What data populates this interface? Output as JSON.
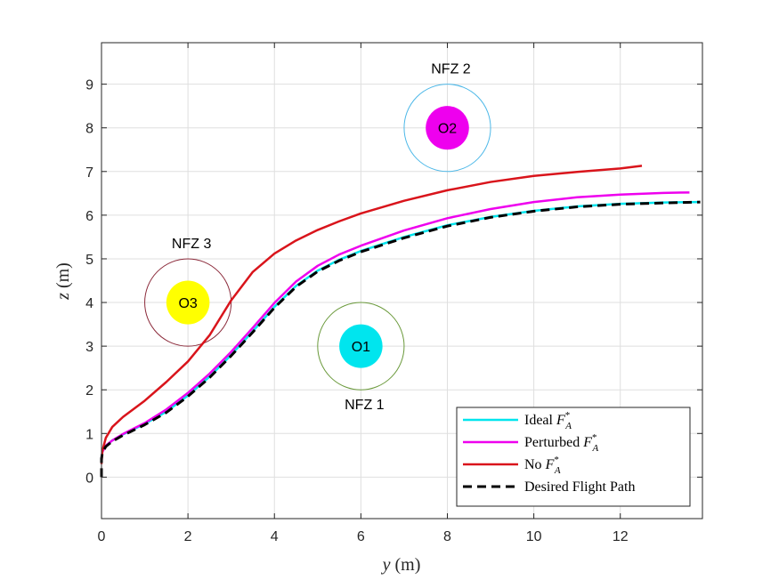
{
  "chart_data": {
    "type": "line",
    "title": "",
    "xlabel": "y (m)",
    "ylabel": "z (m)",
    "xlim": [
      0,
      13.9
    ],
    "ylim": [
      -0.95,
      9.95
    ],
    "xticks": [
      0,
      2,
      4,
      6,
      8,
      10,
      12
    ],
    "yticks": [
      0,
      1,
      2,
      3,
      4,
      5,
      6,
      7,
      8,
      9
    ],
    "xtick_labels": [
      "0",
      "2",
      "4",
      "6",
      "8",
      "10",
      "12"
    ],
    "ytick_labels": [
      "0",
      "1",
      "2",
      "3",
      "4",
      "5",
      "6",
      "7",
      "8",
      "9"
    ],
    "grid": true,
    "legend_position": "bottom-right",
    "series": [
      {
        "name": "Ideal F_A*",
        "legend_main": "Ideal ",
        "legend_sub": "A",
        "legend_sup": "*",
        "color": "#00e5ee",
        "dash": "solid",
        "x": [
          0,
          0.02,
          0.1,
          0.25,
          0.5,
          1,
          1.5,
          2,
          2.5,
          3,
          3.5,
          4,
          4.5,
          5,
          5.5,
          6,
          7,
          8,
          9,
          10,
          11,
          12,
          13,
          13.8
        ],
        "y": [
          0.42,
          0.58,
          0.72,
          0.84,
          0.98,
          1.22,
          1.5,
          1.87,
          2.3,
          2.8,
          3.34,
          3.9,
          4.38,
          4.73,
          4.98,
          5.18,
          5.5,
          5.77,
          5.96,
          6.1,
          6.2,
          6.26,
          6.29,
          6.3
        ]
      },
      {
        "name": "Perturbed F_A*",
        "legend_main": "Perturbed ",
        "legend_sub": "A",
        "legend_sup": "*",
        "color": "#ee00ee",
        "dash": "solid",
        "x": [
          0,
          0.02,
          0.1,
          0.25,
          0.5,
          1,
          1.5,
          2,
          2.5,
          3,
          3.5,
          4,
          4.5,
          5,
          5.5,
          6,
          7,
          8,
          9,
          10,
          11,
          12,
          13,
          13.6
        ],
        "y": [
          0.42,
          0.58,
          0.72,
          0.84,
          0.99,
          1.24,
          1.55,
          1.93,
          2.37,
          2.87,
          3.42,
          3.99,
          4.48,
          4.84,
          5.1,
          5.3,
          5.65,
          5.93,
          6.14,
          6.3,
          6.41,
          6.47,
          6.51,
          6.52
        ]
      },
      {
        "name": "No F_A*",
        "legend_main": "No ",
        "legend_sub": "A",
        "legend_sup": "*",
        "color": "#d9141b",
        "dash": "solid",
        "x": [
          0,
          0.02,
          0.1,
          0.25,
          0.5,
          1,
          1.5,
          2,
          2.5,
          3,
          3.5,
          4,
          4.5,
          5,
          5.5,
          6,
          7,
          8,
          9,
          10,
          11,
          12,
          12.5
        ],
        "y": [
          0.3,
          0.6,
          0.9,
          1.15,
          1.38,
          1.75,
          2.18,
          2.65,
          3.25,
          4.05,
          4.7,
          5.12,
          5.42,
          5.66,
          5.86,
          6.04,
          6.33,
          6.57,
          6.76,
          6.9,
          6.99,
          7.07,
          7.13
        ]
      },
      {
        "name": "Desired Flight Path",
        "legend_main": "Desired Flight Path",
        "legend_sub": "",
        "legend_sup": "",
        "color": "#000000",
        "dash": "dashed",
        "x": [
          0,
          0,
          0.02,
          0.1,
          0.25,
          0.5,
          1,
          1.5,
          2,
          2.5,
          3,
          3.5,
          4,
          4.5,
          5,
          5.5,
          6,
          7,
          8,
          9,
          10,
          11,
          12,
          13,
          13.85
        ],
        "y": [
          0,
          0.42,
          0.56,
          0.7,
          0.82,
          0.96,
          1.2,
          1.48,
          1.85,
          2.28,
          2.78,
          3.32,
          3.88,
          4.36,
          4.71,
          4.96,
          5.16,
          5.48,
          5.75,
          5.95,
          6.09,
          6.19,
          6.25,
          6.28,
          6.3
        ]
      }
    ],
    "zones": [
      {
        "name": "NFZ 1",
        "label": "NFZ 1",
        "obstacle": "O1",
        "cx": 6,
        "cz": 3,
        "zone_r": 1,
        "obs_r": 0.5,
        "fill": "#00e5ee",
        "ring": "#6b9a3c",
        "label_side": "below"
      },
      {
        "name": "NFZ 2",
        "label": "NFZ 2",
        "obstacle": "O2",
        "cx": 8,
        "cz": 8,
        "zone_r": 1,
        "obs_r": 0.5,
        "fill": "#ee00ee",
        "ring": "#4db8e8",
        "label_side": "above"
      },
      {
        "name": "NFZ 3",
        "label": "NFZ 3",
        "obstacle": "O3",
        "cx": 2,
        "cz": 4,
        "zone_r": 1,
        "obs_r": 0.5,
        "fill": "#ffff00",
        "ring": "#8b2a3a",
        "label_side": "above"
      }
    ]
  },
  "axes": {
    "xlabel_italic": "y",
    "xlabel_unit": " (m)",
    "ylabel_italic": "z",
    "ylabel_unit": " (m)"
  },
  "legend": {
    "F": "F"
  },
  "colors": {
    "axis": "#262626",
    "grid": "#dfdfdf",
    "frame": "#262626"
  }
}
